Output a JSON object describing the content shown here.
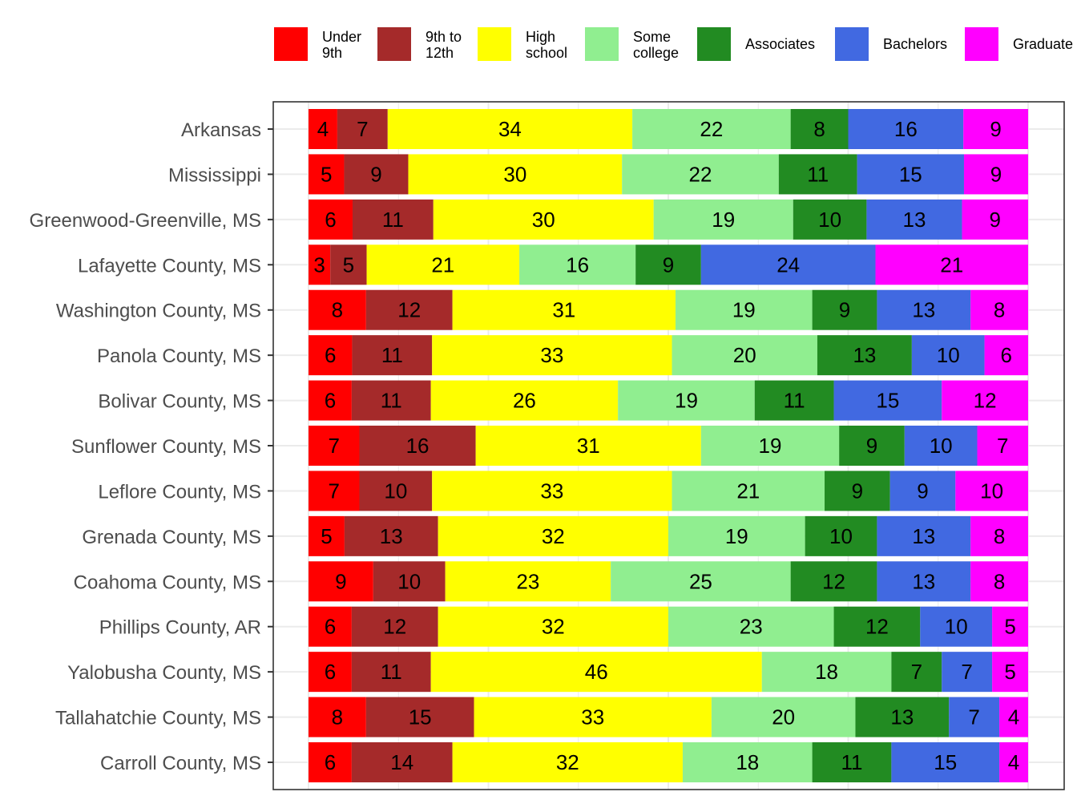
{
  "chart_data": {
    "type": "bar",
    "orientation": "horizontal",
    "stacked": "percent",
    "title": "",
    "xlabel": "",
    "ylabel": "",
    "grid": true,
    "legend_position": "top",
    "categories": [
      "Arkansas",
      "Mississippi",
      "Greenwood-Greenville, MS",
      "Lafayette County, MS",
      "Washington County, MS",
      "Panola County, MS",
      "Bolivar County, MS",
      "Sunflower County, MS",
      "Leflore County, MS",
      "Grenada County, MS",
      "Coahoma County, MS",
      "Phillips County, AR",
      "Yalobusha County, MS",
      "Tallahatchie County, MS",
      "Carroll County, MS"
    ],
    "series": [
      {
        "name": "Under 9th",
        "legend_lines": [
          "Under",
          "9th"
        ],
        "color": "#ff0000",
        "values": [
          4,
          5,
          6,
          3,
          8,
          6,
          6,
          7,
          7,
          5,
          9,
          6,
          6,
          8,
          6
        ]
      },
      {
        "name": "9th to 12th",
        "legend_lines": [
          "9th to",
          "12th"
        ],
        "color": "#a52a2a",
        "values": [
          7,
          9,
          11,
          5,
          12,
          11,
          11,
          16,
          10,
          13,
          10,
          12,
          11,
          15,
          14
        ]
      },
      {
        "name": "High school",
        "legend_lines": [
          "High",
          "school"
        ],
        "color": "#ffff00",
        "values": [
          34,
          30,
          30,
          21,
          31,
          33,
          26,
          31,
          33,
          32,
          23,
          32,
          46,
          33,
          32
        ]
      },
      {
        "name": "Some college",
        "legend_lines": [
          "Some",
          "college"
        ],
        "color": "#90ee90",
        "values": [
          22,
          22,
          19,
          16,
          19,
          20,
          19,
          19,
          21,
          19,
          25,
          23,
          18,
          20,
          18
        ]
      },
      {
        "name": "Associates",
        "legend_lines": [
          "Associates"
        ],
        "color": "#228b22",
        "values": [
          8,
          11,
          10,
          9,
          9,
          13,
          11,
          9,
          9,
          10,
          12,
          12,
          7,
          13,
          11
        ]
      },
      {
        "name": "Bachelors",
        "legend_lines": [
          "Bachelors"
        ],
        "color": "#4169e1",
        "values": [
          16,
          15,
          13,
          24,
          13,
          10,
          15,
          10,
          9,
          13,
          13,
          10,
          7,
          7,
          15
        ]
      },
      {
        "name": "Graduate",
        "legend_lines": [
          "Graduate"
        ],
        "color": "#ff00ff",
        "values": [
          9,
          9,
          9,
          21,
          8,
          6,
          12,
          7,
          10,
          8,
          8,
          5,
          5,
          4,
          4
        ]
      }
    ]
  }
}
